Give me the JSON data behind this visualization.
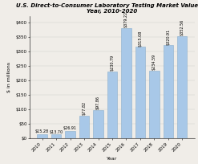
{
  "title": "U.S. Direct-to-Consumer Laboratory Testing Market Value by\nYear, 2010-2020",
  "xlabel": "Year",
  "ylabel": "$ in millions",
  "years": [
    "2010",
    "2011",
    "2012",
    "2013",
    "2014",
    "2015",
    "2016",
    "2017",
    "2018",
    "2019",
    "2020"
  ],
  "values": [
    15.28,
    13.7,
    26.91,
    77.82,
    97.86,
    230.79,
    379.22,
    315.08,
    234.59,
    320.91,
    352.56
  ],
  "bar_color": "#a8c8e8",
  "bar_edge_color": "#8aaecc",
  "ylim": [
    0,
    420
  ],
  "yticks": [
    0,
    50,
    100,
    150,
    200,
    250,
    300,
    350,
    400
  ],
  "ytick_labels": [
    "$0",
    "$50",
    "$100",
    "$150",
    "$200",
    "$250",
    "$300",
    "$350",
    "$400"
  ],
  "value_labels": [
    "$15.28",
    "$13.70",
    "$26.91",
    "$77.82",
    "$97.86",
    "$230.79",
    "$379.22",
    "$315.08",
    "$234.59",
    "$320.91",
    "$352.56"
  ],
  "title_fontsize": 5.0,
  "axis_label_fontsize": 4.5,
  "tick_fontsize": 4.0,
  "bar_label_fontsize": 3.5,
  "background_color": "#f0ede8",
  "bar_width": 0.7,
  "rotate_threshold": 60
}
